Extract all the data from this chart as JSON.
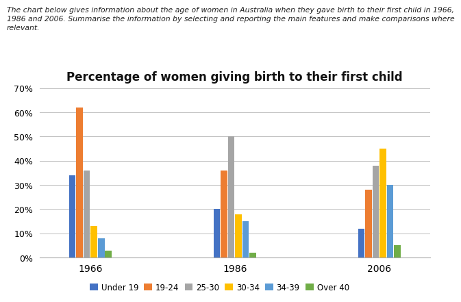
{
  "title": "Percentage of women giving birth to their first child",
  "years": [
    "1966",
    "1986",
    "2006"
  ],
  "categories": [
    "Under 19",
    "19-24",
    "25-30",
    "30-34",
    "34-39",
    "Over 40"
  ],
  "colors": [
    "#4472C4",
    "#ED7D31",
    "#A5A5A5",
    "#FFC000",
    "#5B9BD5",
    "#70AD47"
  ],
  "values": {
    "Under 19": [
      34,
      20,
      12
    ],
    "19-24": [
      62,
      36,
      28
    ],
    "25-30": [
      36,
      50,
      38
    ],
    "30-34": [
      13,
      18,
      45
    ],
    "34-39": [
      8,
      15,
      30
    ],
    "Over 40": [
      3,
      2,
      5
    ]
  },
  "ylim": [
    0,
    70
  ],
  "yticks": [
    0,
    10,
    20,
    30,
    40,
    50,
    60,
    70
  ],
  "ytick_labels": [
    "0%",
    "10%",
    "20%",
    "30%",
    "40%",
    "50%",
    "60%",
    "70%"
  ],
  "header_line1": "The chart below gives information about the age of women in Australia when they gave birth to their first child in 1966,",
  "header_line2": "1986 and 2006. Summarise the information by selecting and reporting the main features and make comparisons where",
  "header_line3": "relevant.",
  "background_color": "#FFFFFF",
  "grid_color": "#BFBFBF",
  "bar_width": 0.1,
  "title_fontsize": 12,
  "legend_fontsize": 8.5,
  "header_fontsize": 7.8,
  "axis_fontsize": 9
}
